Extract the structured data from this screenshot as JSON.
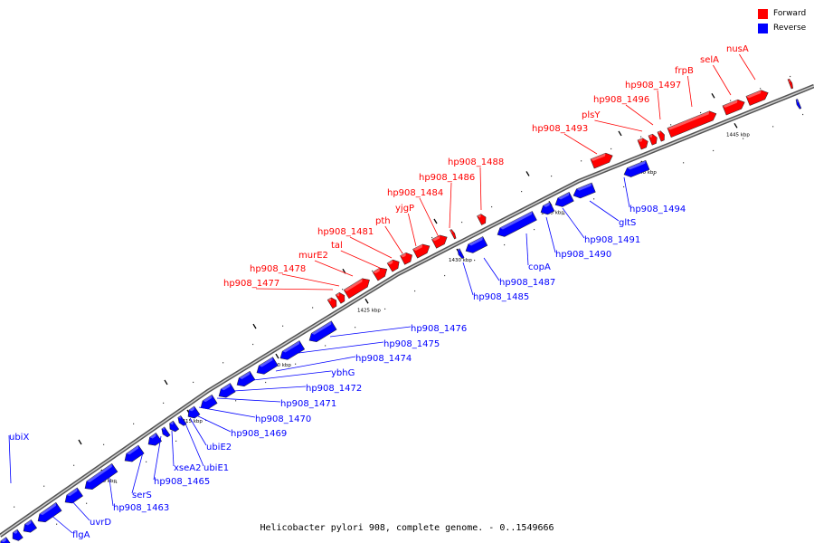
{
  "legend": [
    {
      "label": "Forward",
      "color": "#ff0000"
    },
    {
      "label": "Reverse",
      "color": "#0000ff"
    }
  ],
  "caption": "Helicobacter pylori 908, complete genome. - 0..1549666",
  "ticks": [
    "1410 kbp",
    "1415 kbp",
    "1420 kbp",
    "1425 kbp",
    "1430 kbp",
    "1435 kbp",
    "1440 kbp",
    "1445 kbp"
  ],
  "genes_forward": [
    "hp908_1477",
    "hp908_1478",
    "murE2",
    "tal",
    "hp908_1481",
    "pth",
    "yjgP",
    "hp908_1484",
    "hp908_1486",
    "hp908_1488",
    "hp908_1493",
    "plsY",
    "hp908_1496",
    "hp908_1497",
    "frpB",
    "selA",
    "nusA"
  ],
  "genes_reverse": [
    "ubiX",
    "flgA",
    "uvrD",
    "hp908_1463",
    "serS",
    "hp908_1465",
    "xseA2",
    "ubiE1",
    "ubiE2",
    "hp908_1469",
    "hp908_1470",
    "hp908_1471",
    "hp908_1472",
    "ybhG",
    "hp908_1474",
    "hp908_1475",
    "hp908_1476",
    "hp908_1485",
    "hp908_1487",
    "copA",
    "hp908_1490",
    "hp908_1491",
    "gltS",
    "hp908_1494"
  ],
  "colors": {
    "forward": "#ff0000",
    "reverse": "#0000ff",
    "axis": "#808080"
  }
}
